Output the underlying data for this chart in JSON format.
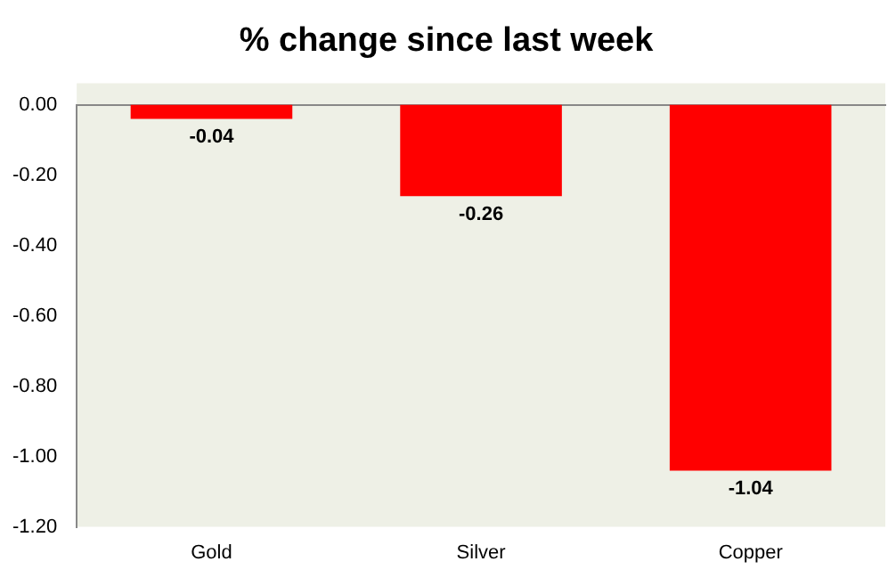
{
  "chart_data": {
    "type": "bar",
    "title": "% change since last week",
    "categories": [
      "Gold",
      "Silver",
      "Copper"
    ],
    "values": [
      -0.04,
      -0.26,
      -1.04
    ],
    "color": "#ff0000",
    "ylim": [
      -1.2,
      0
    ],
    "yticks": [
      {
        "value": 0,
        "label": "0.00"
      },
      {
        "value": -0.2,
        "label": "-0.20"
      },
      {
        "value": -0.4,
        "label": "-0.40"
      },
      {
        "value": -0.6,
        "label": "-0.60"
      },
      {
        "value": -0.8,
        "label": "-0.80"
      },
      {
        "value": -1,
        "label": "-1.00"
      },
      {
        "value": -1.2,
        "label": "-1.20"
      }
    ],
    "grid": false,
    "legend": false,
    "data_labels": true
  }
}
